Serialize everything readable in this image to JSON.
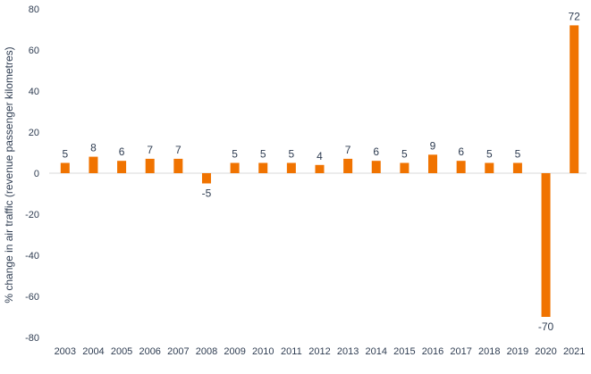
{
  "chart_data": {
    "type": "bar",
    "title": "",
    "xlabel": "",
    "ylabel": "% change in air traffic (revenue passenger kilometres)",
    "ylim": [
      -80,
      80
    ],
    "yticks": [
      80,
      60,
      40,
      20,
      0,
      -20,
      -40,
      -60,
      -80
    ],
    "grid": false,
    "legend": "none",
    "categories": [
      "2003",
      "2004",
      "2005",
      "2006",
      "2007",
      "2008",
      "2009",
      "2010",
      "2011",
      "2012",
      "2013",
      "2014",
      "2015",
      "2016",
      "2017",
      "2018",
      "2019",
      "2020",
      "2021"
    ],
    "values": [
      5,
      8,
      6,
      7,
      7,
      -5,
      5,
      5,
      5,
      4,
      7,
      6,
      5,
      9,
      6,
      5,
      5,
      -70,
      72
    ],
    "data_labels": [
      "5",
      "8",
      "6",
      "7",
      "7",
      "-5",
      "5",
      "5",
      "5",
      "4",
      "7",
      "6",
      "5",
      "9",
      "6",
      "5",
      "5",
      "-70",
      "72"
    ],
    "colors": {
      "bar": "#f07300",
      "text": "#2f3d52",
      "axis": "#d9d9d9"
    }
  }
}
